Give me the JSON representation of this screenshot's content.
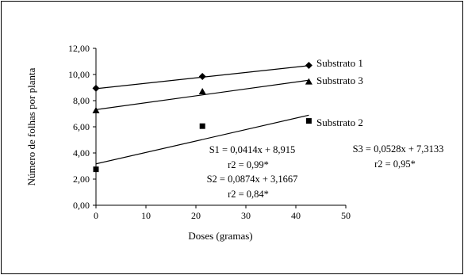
{
  "chart_data": {
    "type": "scatter",
    "xlabel": "Doses (gramas)",
    "ylabel": "Número de folhas por planta",
    "xlim": [
      0,
      50
    ],
    "ylim": [
      0,
      12
    ],
    "x_ticks": [
      "0",
      "10",
      "20",
      "30",
      "40",
      "50"
    ],
    "y_ticks": [
      "0,00",
      "2,00",
      "4,00",
      "6,00",
      "8,00",
      "10,00",
      "12,00"
    ],
    "grid": false,
    "series": [
      {
        "name": "Substrato 1",
        "marker": "diamond",
        "x": [
          0,
          21.3,
          42.6
        ],
        "y": [
          8.95,
          9.85,
          10.7
        ],
        "trend": {
          "slope": 0.0414,
          "intercept": 8.915
        },
        "equation": "S1 = 0,0414x + 8,915",
        "r2": "r2 = 0,99*"
      },
      {
        "name": "Substrato 2",
        "marker": "square",
        "x": [
          0,
          21.3,
          42.6
        ],
        "y": [
          2.75,
          6.05,
          6.45
        ],
        "trend": {
          "slope": 0.0874,
          "intercept": 3.1667
        },
        "equation": "S2 = 0,0874x + 3,1667",
        "r2": "r2 = 0,84*"
      },
      {
        "name": "Substrato 3",
        "marker": "triangle",
        "x": [
          0,
          21.3,
          42.6
        ],
        "y": [
          7.25,
          8.7,
          9.45
        ],
        "trend": {
          "slope": 0.0528,
          "intercept": 7.3133
        },
        "equation": "S3 = 0,0528x + 7,3133",
        "r2": "r2 = 0,95*"
      }
    ]
  }
}
